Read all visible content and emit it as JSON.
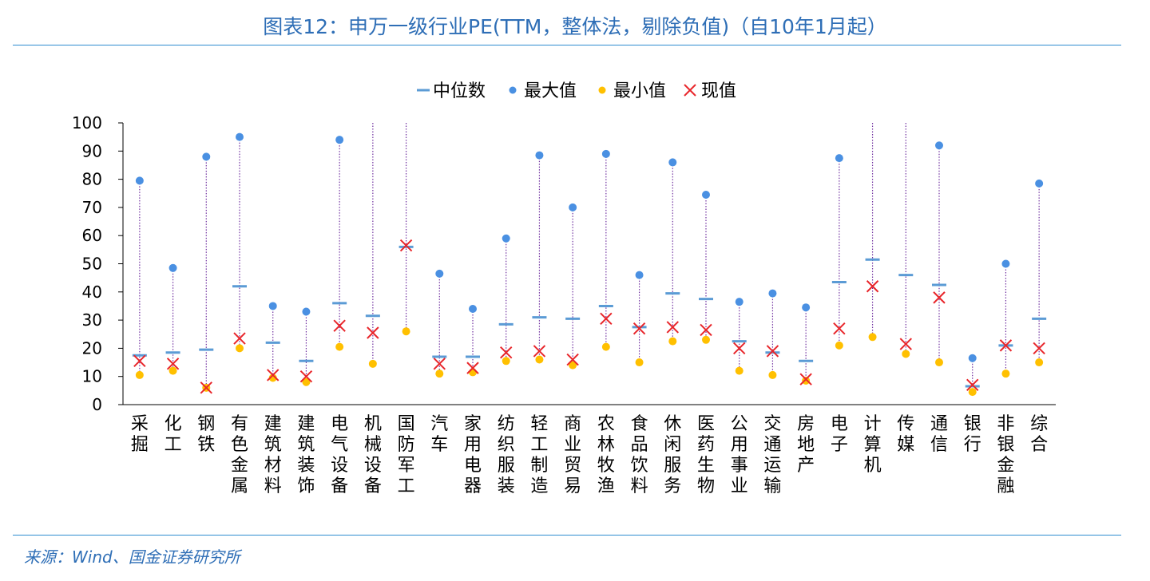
{
  "title": "图表12：申万一级行业PE(TTM，整体法，剔除负值)（自10年1月起）",
  "source": "来源：Wind、国金证券研究所",
  "colors": {
    "median": "#5b9bd5",
    "max": "#4a90e2",
    "min": "#ffc000",
    "current": "#e8262b",
    "range": "#7030a0"
  },
  "chart_data": {
    "type": "scatter",
    "legend": {
      "position": "top",
      "entries": [
        "中位数",
        "最大值",
        "最小值",
        "现值"
      ]
    },
    "ylim": [
      0,
      100
    ],
    "yticks": [
      0,
      10,
      20,
      30,
      40,
      50,
      60,
      70,
      80,
      90,
      100
    ],
    "categories": [
      "采掘",
      "化工",
      "钢铁",
      "有色金属",
      "建筑材料",
      "建筑装饰",
      "电气设备",
      "机械设备",
      "国防军工",
      "汽车",
      "家用电器",
      "纺织服装",
      "轻工制造",
      "商业贸易",
      "农林牧渔",
      "食品饮料",
      "休闲服务",
      "医药生物",
      "公用事业",
      "交通运输",
      "房地产",
      "电子",
      "计算机",
      "传媒",
      "通信",
      "银行",
      "非银金融",
      "综合"
    ],
    "series": [
      {
        "name": "中位数",
        "values": [
          17.5,
          18.5,
          19.5,
          42,
          22,
          15.5,
          36,
          31.5,
          56,
          17,
          17,
          28.5,
          31,
          30.5,
          35,
          27.5,
          39.5,
          37.5,
          22.5,
          18.5,
          15.5,
          43.5,
          51.5,
          46,
          42.5,
          6.5,
          21,
          30.5
        ]
      },
      {
        "name": "最大值",
        "values": [
          79.5,
          48.5,
          88,
          95,
          35,
          33,
          94,
          100,
          100,
          46.5,
          34,
          59,
          88.5,
          70,
          89,
          46,
          86,
          74.5,
          36.5,
          39.5,
          34.5,
          87.5,
          100,
          100,
          92,
          16.5,
          50,
          78.5
        ]
      },
      {
        "name": "最小值",
        "values": [
          10.5,
          12,
          6,
          20,
          9.5,
          8,
          20.5,
          14.5,
          26,
          11,
          11.5,
          15.5,
          16,
          14,
          20.5,
          15,
          22.5,
          23,
          12,
          10.5,
          8.5,
          21,
          24,
          18,
          15,
          4.5,
          11,
          15
        ]
      },
      {
        "name": "现值",
        "values": [
          15.5,
          14.5,
          6,
          23.5,
          10.5,
          10,
          28,
          25.5,
          56.5,
          14.5,
          13,
          18.5,
          19,
          16,
          30.5,
          27,
          27.5,
          26.5,
          20,
          19,
          9,
          27,
          42,
          21.5,
          38,
          7,
          21,
          20
        ]
      }
    ]
  }
}
